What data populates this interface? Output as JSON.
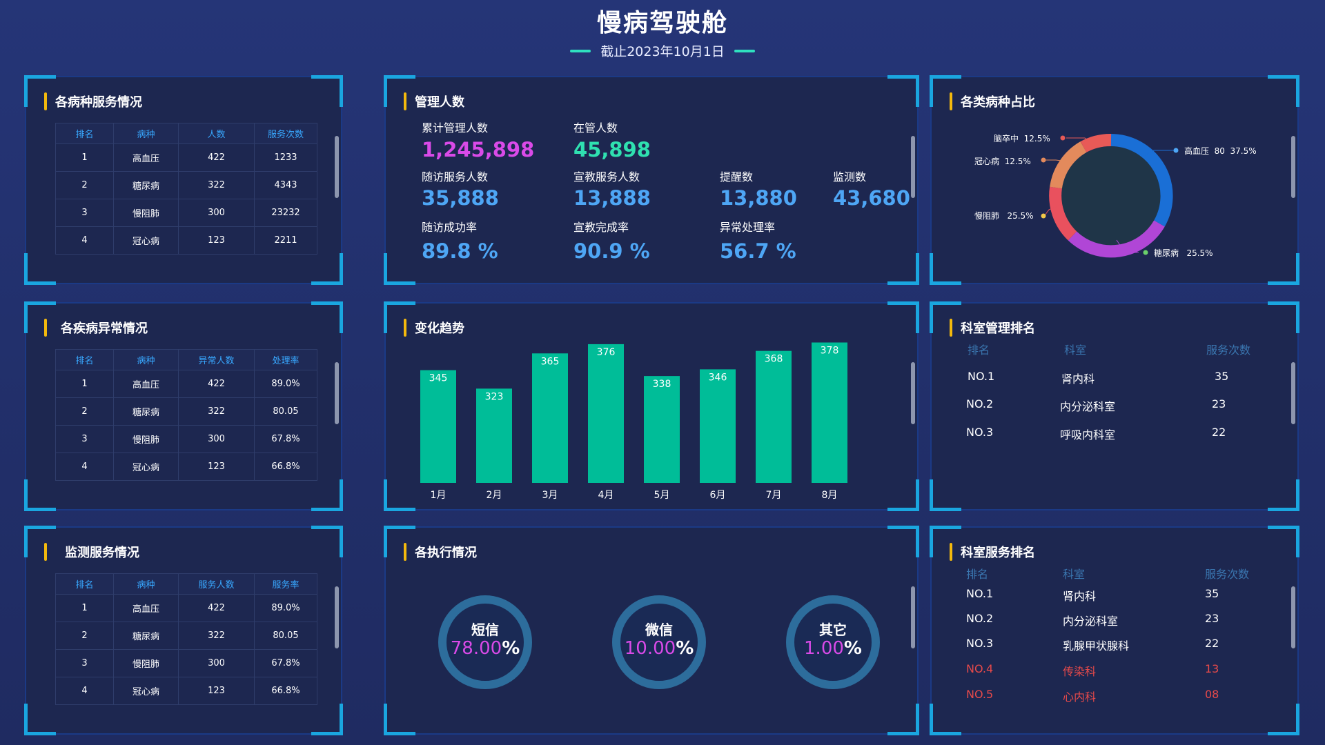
{
  "header": {
    "title": "慢病驾驶舱",
    "subtitle": "截止2023年10月1日"
  },
  "disease_service": {
    "title": "各病种服务情况",
    "columns": [
      "排名",
      "病种",
      "人数",
      "服务次数"
    ],
    "rows": [
      [
        "1",
        "高血压",
        "422",
        "1233"
      ],
      [
        "2",
        "糖尿病",
        "322",
        "4343"
      ],
      [
        "3",
        "慢阻肺",
        "300",
        "23232"
      ],
      [
        "4",
        "冠心病",
        "123",
        "2211"
      ]
    ]
  },
  "disease_abnormal": {
    "title": "各疾病异常情况",
    "columns": [
      "排名",
      "病种",
      "异常人数",
      "处理率"
    ],
    "rows": [
      [
        "1",
        "高血压",
        "422",
        "89.0%"
      ],
      [
        "2",
        "糖尿病",
        "322",
        "80.05"
      ],
      [
        "3",
        "慢阻肺",
        "300",
        "67.8%"
      ],
      [
        "4",
        "冠心病",
        "123",
        "66.8%"
      ]
    ]
  },
  "monitor_service": {
    "title": "监测服务情况",
    "columns": [
      "排名",
      "病种",
      "服务人数",
      "服务率"
    ],
    "rows": [
      [
        "1",
        "高血压",
        "422",
        "89.0%"
      ],
      [
        "2",
        "糖尿病",
        "322",
        "80.05"
      ],
      [
        "3",
        "慢阻肺",
        "300",
        "67.8%"
      ],
      [
        "4",
        "冠心病",
        "123",
        "66.8%"
      ]
    ]
  },
  "management": {
    "title": "管理人数",
    "stats": [
      {
        "label": "累计管理人数",
        "value": "1,245,898",
        "color": "#d94ae8"
      },
      {
        "label": "在管人数",
        "value": "45,898",
        "color": "#2fe0b0"
      },
      {
        "label": "随访服务人数",
        "value": "35,888",
        "color": "#4ea6f5"
      },
      {
        "label": "宣教服务人数",
        "value": "13,888",
        "color": "#4ea6f5"
      },
      {
        "label": "提醒数",
        "value": "13,880",
        "color": "#4ea6f5"
      },
      {
        "label": "监测数",
        "value": "43,680",
        "color": "#4ea6f5"
      },
      {
        "label": "随访成功率",
        "value": "89.8 %",
        "color": "#4ea6f5"
      },
      {
        "label": "宣教完成率",
        "value": "90.9 %",
        "color": "#4ea6f5"
      },
      {
        "label": "异常处理率",
        "value": "56.7 %",
        "color": "#4ea6f5"
      }
    ]
  },
  "disease_share": {
    "title": "各类病种占比",
    "labels": [
      {
        "name": "高血压",
        "text": "高血压  80  37.5%"
      },
      {
        "name": "糖尿病",
        "text": "糖尿病   25.5%"
      },
      {
        "name": "慢阻肺",
        "text": "慢阻肺   25.5%"
      },
      {
        "name": "冠心病",
        "text": "冠心病  12.5%"
      },
      {
        "name": "脑卒中",
        "text": "脑卒中  12.5%"
      }
    ]
  },
  "trend": {
    "title": "变化趋势"
  },
  "chart_data": {
    "type": "bar",
    "categories": [
      "1月",
      "2月",
      "3月",
      "4月",
      "5月",
      "6月",
      "7月",
      "8月"
    ],
    "values": [
      345,
      323,
      365,
      376,
      338,
      346,
      368,
      378
    ],
    "color": "#00bd98"
  },
  "dept_manage": {
    "title": "科室管理排名",
    "columns": [
      "排名",
      "科室",
      "服务次数"
    ],
    "rows": [
      [
        "NO.1",
        "肾内科",
        "35"
      ],
      [
        "NO.2",
        "内分泌科室",
        "23"
      ],
      [
        "NO.3",
        "呼吸内科室",
        "22"
      ]
    ]
  },
  "execution": {
    "title": "各执行情况",
    "items": [
      {
        "label": "短信",
        "value": "78.00",
        "unit": "%"
      },
      {
        "label": "微信",
        "value": "10.00",
        "unit": "%"
      },
      {
        "label": "其它",
        "value": "1.00",
        "unit": "%"
      }
    ]
  },
  "dept_service": {
    "title": "科室服务排名",
    "columns": [
      "排名",
      "科室",
      "服务次数"
    ],
    "rows": [
      [
        "NO.1",
        "肾内科",
        "35"
      ],
      [
        "NO.2",
        "内分泌科室",
        "23"
      ],
      [
        "NO.3",
        "乳腺甲状腺科",
        "22"
      ],
      [
        "NO.4",
        "传染科",
        "13"
      ],
      [
        "NO.5",
        "心内科",
        "08"
      ]
    ]
  }
}
